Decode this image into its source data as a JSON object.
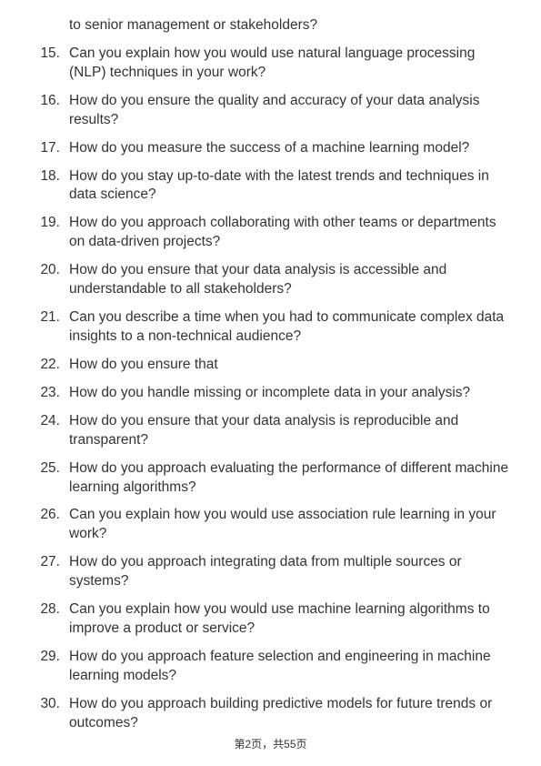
{
  "continuation_text": "to senior management or stakeholders?",
  "start_number": 15,
  "questions": [
    "Can you explain how you would use natural language processing (NLP) techniques in your work?",
    "How do you ensure the quality and accuracy of your data analysis results?",
    "How do you measure the success of a machine learning model?",
    "How do you stay up-to-date with the latest trends and techniques in data science?",
    "How do you approach collaborating with other teams or departments on data-driven projects?",
    "How do you ensure that your data analysis is accessible and understandable to all stakeholders?",
    "Can you describe a time when you had to communicate complex data insights to a non-technical audience?",
    "How do you ensure that",
    "How do you handle missing or incomplete data in your analysis?",
    "How do you ensure that your data analysis is reproducible and transparent?",
    "How do you approach evaluating the performance of different machine learning algorithms?",
    "Can you explain how you would use association rule learning in your work?",
    "How do you approach integrating data from multiple sources or systems?",
    "Can you explain how you would use machine learning algorithms to improve a product or service?",
    "How do you approach feature selection and engineering in machine learning models?",
    "How do you approach building predictive models for future trends or outcomes?"
  ],
  "footer_text": "第2页，共55页"
}
